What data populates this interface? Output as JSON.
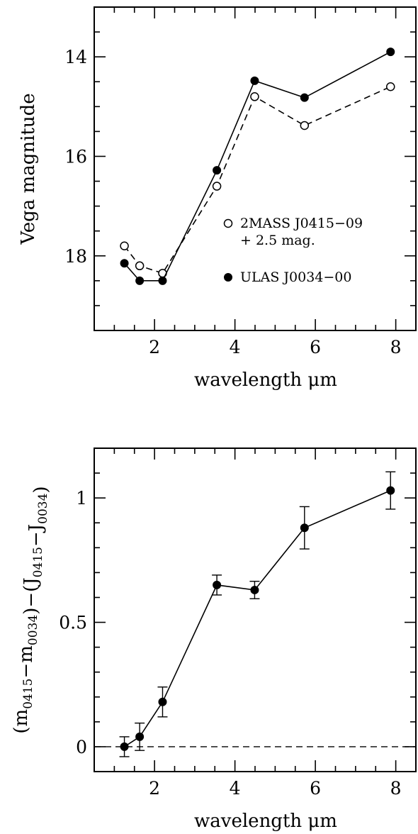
{
  "chart_data": [
    {
      "type": "line",
      "xlabel": "wavelength μm",
      "ylabel": "Vega magnitude",
      "xlim": [
        0.5,
        8.5
      ],
      "ylim": [
        19.5,
        13.0
      ],
      "y_inverted": true,
      "xticks": [
        "2",
        "4",
        "6",
        "8"
      ],
      "yticks": [
        "14",
        "16",
        "18"
      ],
      "x": [
        1.25,
        1.63,
        2.2,
        3.55,
        4.49,
        5.73,
        7.87
      ],
      "series": [
        {
          "name": "2MASS J0415−09 + 2.5 mag.",
          "legend_lines": [
            "2MASS J0415−09",
            "+ 2.5 mag."
          ],
          "marker": "open-circle",
          "line": "dashed",
          "values": [
            17.8,
            18.2,
            18.35,
            16.6,
            14.8,
            15.38,
            14.6
          ]
        },
        {
          "name": "ULAS J0034−00",
          "legend_lines": [
            "ULAS J0034−00"
          ],
          "marker": "filled-circle",
          "line": "solid",
          "values": [
            18.15,
            18.5,
            18.5,
            16.28,
            14.48,
            14.82,
            13.9
          ]
        }
      ],
      "legend_position": "right-middle"
    },
    {
      "type": "line",
      "xlabel": "wavelength μm",
      "ylabel": "(m0415−m0034)−(J0415−J0034)",
      "xlim": [
        0.5,
        8.5
      ],
      "ylim": [
        -0.1,
        1.2
      ],
      "xticks": [
        "2",
        "4",
        "6",
        "8"
      ],
      "yticks": [
        "0",
        "0.5",
        "1"
      ],
      "reference_line": {
        "y": 0,
        "style": "dashed"
      },
      "series": [
        {
          "marker": "filled-circle",
          "line": "solid",
          "x": [
            1.25,
            1.63,
            2.2,
            3.55,
            4.49,
            5.73,
            7.87
          ],
          "values": [
            0.0,
            0.04,
            0.18,
            0.65,
            0.63,
            0.88,
            1.03
          ],
          "errors": [
            0.04,
            0.055,
            0.06,
            0.04,
            0.035,
            0.085,
            0.075
          ]
        }
      ]
    }
  ]
}
